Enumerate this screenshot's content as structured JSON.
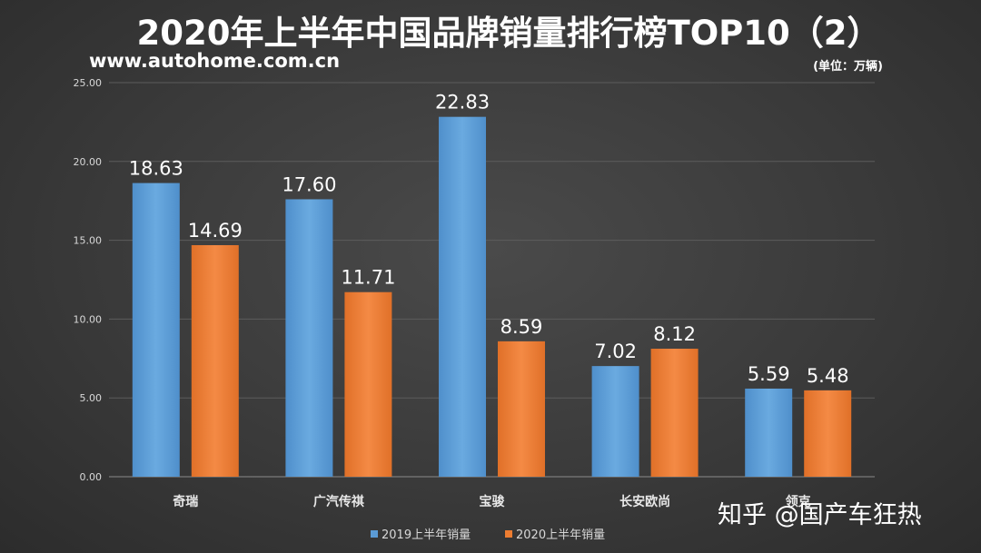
{
  "header": {
    "title": "2020年上半年中国品牌销量排行榜TOP10（2）",
    "site": "www.autohome.com.cn",
    "unit": "(单位：万辆)"
  },
  "watermark": "知乎 @国产车狂热",
  "chart_data": {
    "type": "bar",
    "title": "2020年上半年中国品牌销量排行榜TOP10（2）",
    "categories": [
      "奇瑞",
      "广汽传祺",
      "宝骏",
      "长安欧尚",
      "领克"
    ],
    "series": [
      {
        "name": "2019上半年销量",
        "values": [
          18.63,
          17.6,
          22.83,
          7.02,
          5.59
        ],
        "color": "#5b9bd5"
      },
      {
        "name": "2020上半年销量",
        "values": [
          14.69,
          11.71,
          8.59,
          8.12,
          5.48
        ],
        "color": "#ed7d31"
      }
    ],
    "ylim": [
      0,
      25
    ],
    "yticks": [
      "0.00",
      "5.00",
      "10.00",
      "15.00",
      "20.00",
      "25.00"
    ],
    "value_labels": [
      [
        "18.63",
        "17.60",
        "22.83",
        "7.02",
        "5.59"
      ],
      [
        "14.69",
        "11.71",
        "8.59",
        "8.12",
        "5.48"
      ]
    ],
    "grid": true,
    "legend": "bottom-center"
  }
}
